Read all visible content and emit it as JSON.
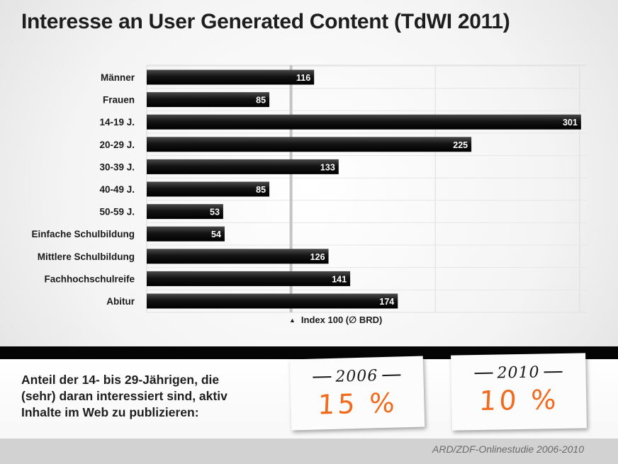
{
  "title": "Interesse an User Generated Content (TdWI 2011)",
  "chart_data": {
    "type": "bar",
    "orientation": "horizontal",
    "categories": [
      "Männer",
      "Frauen",
      "14-19 J.",
      "20-29 J.",
      "30-39 J.",
      "40-49 J.",
      "50-59 J.",
      "Einfache Schulbildung",
      "Mittlere Schulbildung",
      "Fachhochschulreife",
      "Abitur"
    ],
    "values": [
      116,
      85,
      301,
      225,
      133,
      85,
      53,
      54,
      126,
      141,
      174
    ],
    "reference_line": {
      "value": 100,
      "label": "Index 100 (∅ BRD)",
      "marker": "▲"
    },
    "xlim": [
      0,
      305
    ],
    "grid": true,
    "bar_color": "#111111"
  },
  "bottom": {
    "text_lines": [
      "Anteil der 14- bis 29-Jährigen, die",
      "(sehr) daran interessiert sind, aktiv",
      "Inhalte im Web zu publizieren:"
    ],
    "notes": [
      {
        "year": "2006",
        "value": "15 %"
      },
      {
        "year": "2010",
        "value": "10 %"
      }
    ],
    "accent_color": "#f26a1b"
  },
  "source": "ARD/ZDF-Onlinestudie 2006-2010"
}
